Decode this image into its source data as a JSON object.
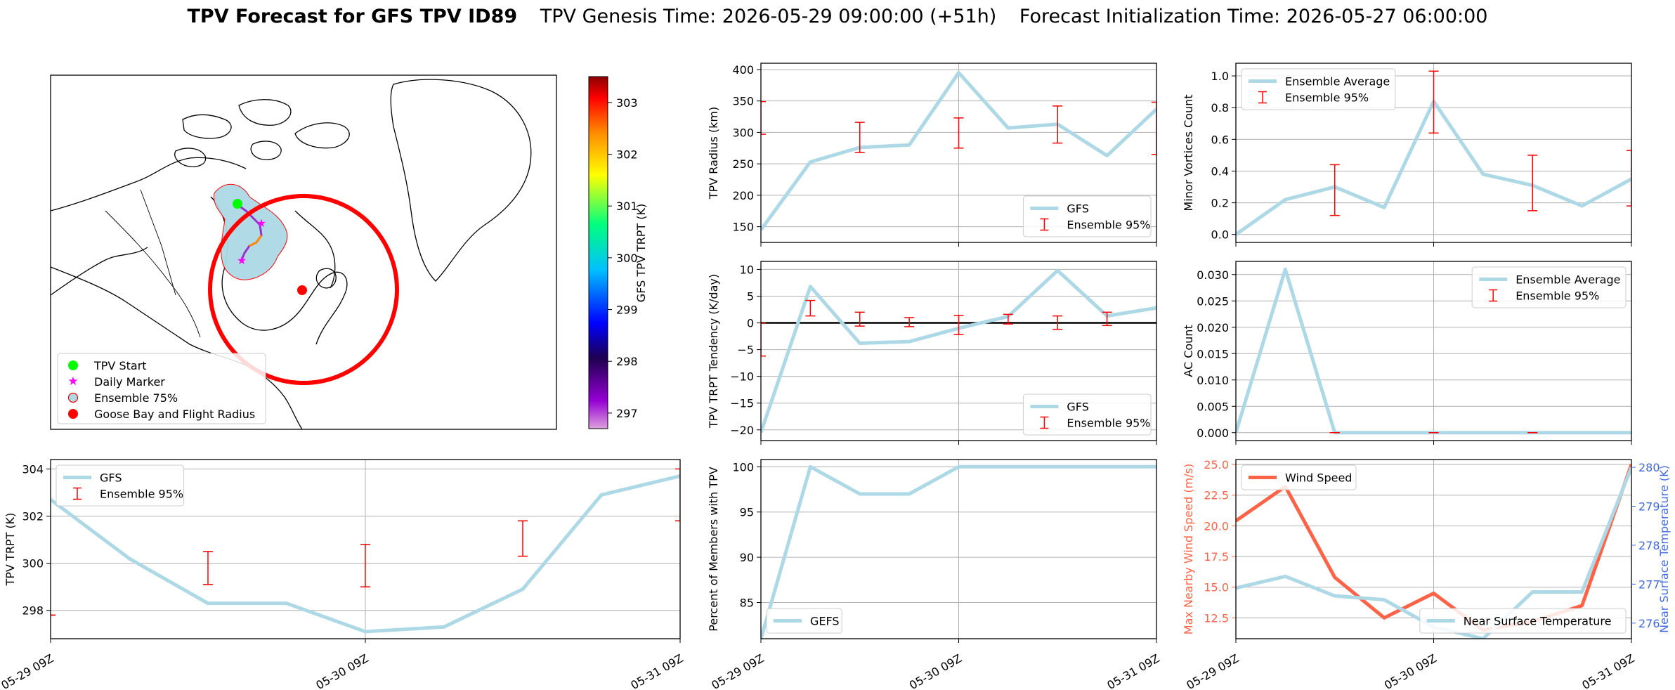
{
  "title": {
    "bold": "TPV Forecast for GFS TPV ID89",
    "genesis": "TPV Genesis Time: 2026-05-29 09:00:00 (+51h)",
    "init": "Forecast Initialization Time: 2026-05-27 06:00:00"
  },
  "colors": {
    "ens_line": "#add8e6",
    "err": "#ff0000",
    "wind": "#ff6347",
    "temp_axis": "#4169e1",
    "zero_line": "#000000"
  },
  "map": {
    "colorbar_label": "GFS TPV TRPT (K)",
    "colorbar_ticks": [
      "303",
      "302",
      "301",
      "300",
      "299",
      "298",
      "297"
    ],
    "colorbar_range": [
      296.7,
      303.5
    ],
    "legend": [
      "TPV Start",
      "Daily Marker",
      "Ensemble 75%",
      "Goose Bay and Flight Radius"
    ]
  },
  "chart_data": [
    {
      "id": "radius",
      "type": "line",
      "ylabel": "TPV Radius (km)",
      "ylim": [
        125,
        410
      ],
      "yticks": [
        "150",
        "200",
        "250",
        "300",
        "350",
        "400"
      ],
      "series": [
        {
          "name": "GFS",
          "y": [
            145,
            253,
            276,
            280,
            395,
            307,
            313,
            263,
            337
          ]
        }
      ],
      "errorbars": [
        {
          "i": 0,
          "low": 297,
          "high": 349
        },
        {
          "i": 2,
          "low": 268,
          "high": 316
        },
        {
          "i": 4,
          "low": 275,
          "high": 323
        },
        {
          "i": 6,
          "low": 283,
          "high": 342
        },
        {
          "i": 8,
          "low": 265,
          "high": 348
        }
      ],
      "legend": [
        "GFS",
        "Ensemble 95%"
      ],
      "legend_pos": "lower-right"
    },
    {
      "id": "minor",
      "type": "line",
      "ylabel": "Minor Vortices Count",
      "ylim": [
        -0.05,
        1.08
      ],
      "yticks": [
        "0.0",
        "0.2",
        "0.4",
        "0.6",
        "0.8",
        "1.0"
      ],
      "series": [
        {
          "name": "Ensemble Average",
          "y": [
            0.0,
            0.22,
            0.3,
            0.17,
            0.84,
            0.38,
            0.31,
            0.18,
            0.35
          ]
        }
      ],
      "errorbars": [
        {
          "i": 2,
          "low": 0.12,
          "high": 0.44
        },
        {
          "i": 4,
          "low": 0.64,
          "high": 1.03
        },
        {
          "i": 6,
          "low": 0.15,
          "high": 0.5
        },
        {
          "i": 8,
          "low": 0.18,
          "high": 0.53
        }
      ],
      "legend": [
        "Ensemble Average",
        "Ensemble 95%"
      ],
      "legend_pos": "upper-left"
    },
    {
      "id": "tendency",
      "type": "line",
      "ylabel": "TPV TRPT Tendency (K/day)",
      "ylim": [
        -22,
        11.5
      ],
      "yticks": [
        "10",
        "5",
        "0",
        "−5",
        "−10",
        "−15",
        "−20"
      ],
      "series": [
        {
          "name": "GFS",
          "y": [
            -20.5,
            6.8,
            -3.8,
            -3.5,
            -1.0,
            1.2,
            9.8,
            1.3,
            2.8
          ]
        }
      ],
      "errorbars": [
        {
          "i": 0,
          "low": -6.2,
          "high": 0
        },
        {
          "i": 2,
          "low": 1.3,
          "high": 4.2
        },
        {
          "i": 4,
          "low": -0.6,
          "high": 2.0
        },
        {
          "i": 6,
          "low": -0.7,
          "high": 1.0
        },
        {
          "i": 8,
          "low": -2.2,
          "high": 1.4
        },
        {
          "i": 10,
          "low": -0.2,
          "high": 1.6
        },
        {
          "i": 12,
          "low": -1.2,
          "high": 1.3
        },
        {
          "i": 14,
          "low": -0.5,
          "high": 2.0
        }
      ],
      "errorbar_x_steps": 16,
      "zero_line": true,
      "legend": [
        "GFS",
        "Ensemble 95%"
      ],
      "legend_pos": "lower-right"
    },
    {
      "id": "ac",
      "type": "line",
      "ylabel": "AC Count",
      "ylim": [
        -0.0015,
        0.0325
      ],
      "yticks": [
        "0.000",
        "0.005",
        "0.010",
        "0.015",
        "0.020",
        "0.025",
        "0.030"
      ],
      "series": [
        {
          "name": "Ensemble Average",
          "y": [
            0.0,
            0.031,
            0.0,
            0.0,
            0.0,
            0.0,
            0.0,
            0.0,
            0.0
          ]
        }
      ],
      "errorbars": [
        {
          "i": 2,
          "low": 0,
          "high": 0
        },
        {
          "i": 4,
          "low": 0,
          "high": 0
        },
        {
          "i": 6,
          "low": 0,
          "high": 0
        }
      ],
      "legend": [
        "Ensemble Average",
        "Ensemble 95%"
      ],
      "legend_pos": "upper-right"
    },
    {
      "id": "trpt",
      "type": "line",
      "ylabel": "TPV TRPT (K)",
      "ylim": [
        296.8,
        304.4
      ],
      "yticks": [
        "298",
        "300",
        "302",
        "304"
      ],
      "series": [
        {
          "name": "GFS",
          "y": [
            302.7,
            300.2,
            298.3,
            298.3,
            297.1,
            297.3,
            298.9,
            302.9,
            303.7
          ]
        }
      ],
      "errorbars": [
        {
          "i": 0,
          "low": 297.8,
          "high": 297.8
        },
        {
          "i": 2,
          "low": 299.1,
          "high": 300.5
        },
        {
          "i": 4,
          "low": 299.0,
          "high": 300.8
        },
        {
          "i": 6,
          "low": 300.3,
          "high": 301.8
        },
        {
          "i": 8,
          "low": 301.8,
          "high": 304.0
        }
      ],
      "legend": [
        "GFS",
        "Ensemble 95%"
      ],
      "legend_pos": "upper-left"
    },
    {
      "id": "percent",
      "type": "line",
      "ylabel": "Percent of Members with TPV",
      "ylim": [
        81,
        100.8
      ],
      "yticks": [
        "85",
        "90",
        "95",
        "100"
      ],
      "series": [
        {
          "name": "GEFS",
          "y": [
            81,
            100,
            97,
            97,
            100,
            100,
            100,
            100,
            100
          ]
        }
      ],
      "legend": [
        "GEFS"
      ],
      "legend_pos": "lower-left"
    },
    {
      "id": "wind",
      "type": "line",
      "ylabel": "Max Nearby Wind Speed (m/s)",
      "ylabel2": "Near Surface Temperature (K)",
      "ylim": [
        10.8,
        25.4
      ],
      "yticks": [
        "12.5",
        "15.0",
        "17.5",
        "20.0",
        "22.5",
        "25.0"
      ],
      "ylim2": [
        275.6,
        280.2
      ],
      "yticks2": [
        "276",
        "277",
        "278",
        "279",
        "280"
      ],
      "series": [
        {
          "name": "Wind Speed",
          "y": [
            20.4,
            23.2,
            15.8,
            12.5,
            14.5,
            11.5,
            12.2,
            13.5,
            25.0
          ]
        },
        {
          "name": "Near Surface Temperature",
          "y": [
            276.9,
            277.2,
            276.7,
            276.6,
            275.9,
            275.6,
            276.8,
            276.8,
            280.0
          ],
          "axis": 2
        }
      ],
      "legend": [
        "Wind Speed"
      ],
      "legend2": [
        "Near Surface Temperature"
      ]
    }
  ],
  "xticks": [
    "05-29 09Z",
    "05-30 09Z",
    "05-31 09Z"
  ]
}
